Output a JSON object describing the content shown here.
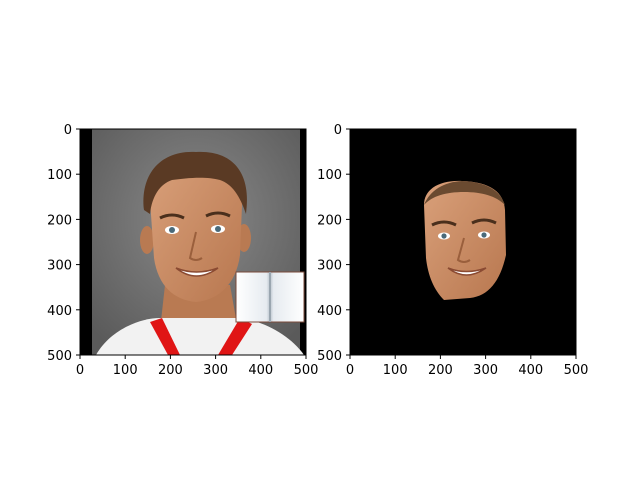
{
  "figure": {
    "panels": [
      {
        "name": "left-panel",
        "content": "photo-of-smiling-man-with-white-shirt-and-red-collar, book-occlusion-overlay",
        "x_ticks": [
          "0",
          "100",
          "200",
          "300",
          "400",
          "500"
        ],
        "y_ticks": [
          "0",
          "100",
          "200",
          "300",
          "400",
          "500"
        ]
      },
      {
        "name": "right-panel",
        "content": "segmented-face-on-black-background",
        "x_ticks": [
          "0",
          "100",
          "200",
          "300",
          "400",
          "500"
        ],
        "y_ticks": [
          "0",
          "100",
          "200",
          "300",
          "400",
          "500"
        ]
      }
    ]
  },
  "colors": {
    "background_gray": "#6d6d6d",
    "mask_black": "#000000",
    "skin": "#c98a63",
    "hair": "#5a3a24",
    "shirt": "#f3f3f3",
    "collar_red": "#e01515"
  }
}
